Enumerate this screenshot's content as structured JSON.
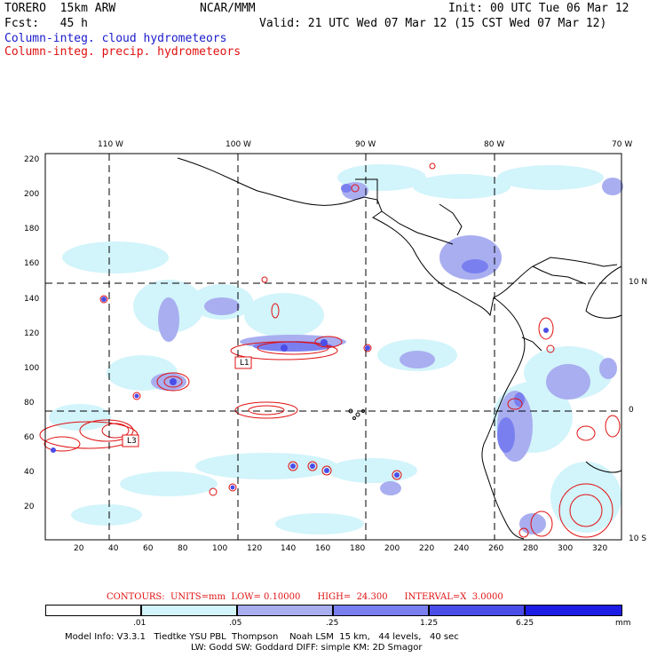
{
  "header": {
    "model": "TORERO  15km ARW",
    "org": "NCAR/MMM",
    "init": "Init: 00 UTC Tue 06 Mar 12",
    "fcst": "Fcst:   45 h",
    "valid": "Valid: 21 UTC Wed 07 Mar 12 (15 CST Wed 07 Mar 12)",
    "field_cloud": "Column-integ. cloud hydrometeors",
    "field_precip": "Column-integ. precip. hydrometeors"
  },
  "map": {
    "top_lon_labels": [
      "110 W",
      "100 W",
      "90 W",
      "80 W",
      "70 W"
    ],
    "right_lat_labels": [
      "10 N",
      "0",
      "10 S"
    ],
    "y_ticks": [
      "220",
      "200",
      "180",
      "160",
      "140",
      "120",
      "100",
      "80",
      "60",
      "40",
      "20"
    ],
    "x_ticks": [
      "20",
      "40",
      "60",
      "80",
      "100",
      "120",
      "140",
      "160",
      "180",
      "200",
      "220",
      "240",
      "260",
      "280",
      "300",
      "320"
    ],
    "low_markers": [
      "L1",
      "L3"
    ],
    "colors": {
      "coast": "#000000",
      "grid": "#000000",
      "contour": "#e01010"
    }
  },
  "contours": {
    "label": "CONTOURS:  UNITS=mm  LOW= 0.10000      HIGH=  24.300      INTERVAL=X  3.0000"
  },
  "colorbar": {
    "labels": [
      ".01",
      ".05",
      ".25",
      "1.25",
      "6.25",
      "mm"
    ],
    "colors": [
      "#ffffff",
      "#d2f4fb",
      "#a9aef0",
      "#7a7ff0",
      "#4a4de8",
      "#1c1ce4"
    ]
  },
  "footer": {
    "line1": "Model Info: V3.3.1   Tiedtke YSU PBL  Thompson    Noah LSM  15 km,   44 levels,   40 sec",
    "line2": "LW: Godd SW: Goddard DIFF: simple KM: 2D Smagor"
  }
}
